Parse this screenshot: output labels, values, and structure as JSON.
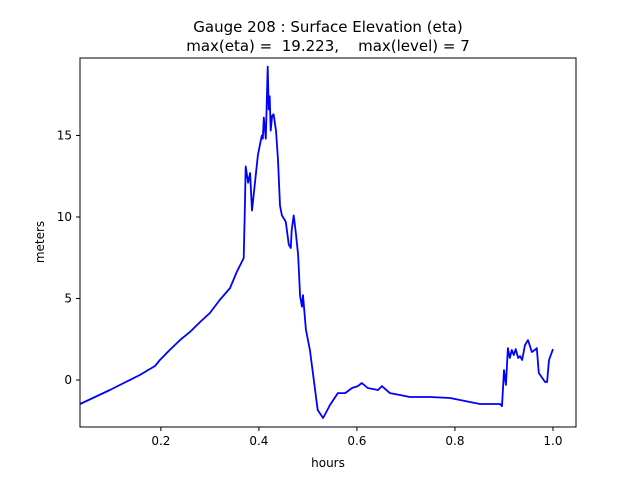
{
  "chart_data": {
    "type": "line",
    "title": "Gauge 208 : Surface Elevation (eta)",
    "subtitle": "max(eta) =  19.223,    max(level) = 7",
    "xlabel": "hours",
    "ylabel": "meters",
    "xlim": [
      0.035,
      1.047
    ],
    "ylim": [
      -2.88,
      19.75
    ],
    "xticks": [
      0.2,
      0.4,
      0.6,
      0.8,
      1.0
    ],
    "xtick_labels": [
      "0.2",
      "0.4",
      "0.6",
      "0.8",
      "1.0"
    ],
    "yticks": [
      0,
      5,
      10,
      15
    ],
    "ytick_labels": [
      "0",
      "5",
      "10",
      "15"
    ],
    "grid": false,
    "series": [
      {
        "name": "eta",
        "color": "#0000ff",
        "x": [
          0.035,
          0.096,
          0.157,
          0.188,
          0.198,
          0.218,
          0.239,
          0.259,
          0.28,
          0.3,
          0.32,
          0.341,
          0.355,
          0.369,
          0.371,
          0.373,
          0.378,
          0.382,
          0.386,
          0.398,
          0.406,
          0.408,
          0.41,
          0.414,
          0.418,
          0.42,
          0.422,
          0.424,
          0.427,
          0.43,
          0.435,
          0.439,
          0.443,
          0.447,
          0.451,
          0.455,
          0.461,
          0.465,
          0.467,
          0.471,
          0.475,
          0.48,
          0.484,
          0.488,
          0.49,
          0.496,
          0.504,
          0.512,
          0.52,
          0.531,
          0.545,
          0.561,
          0.576,
          0.59,
          0.602,
          0.61,
          0.622,
          0.643,
          0.651,
          0.667,
          0.688,
          0.708,
          0.749,
          0.79,
          0.851,
          0.892,
          0.896,
          0.9,
          0.904,
          0.908,
          0.912,
          0.916,
          0.92,
          0.924,
          0.929,
          0.933,
          0.937,
          0.943,
          0.949,
          0.957,
          0.963,
          0.967,
          0.971,
          0.984,
          0.988,
          0.992,
          1.0
        ],
        "y": [
          -1.47,
          -0.61,
          0.31,
          0.86,
          1.23,
          1.84,
          2.45,
          2.94,
          3.56,
          4.11,
          4.91,
          5.64,
          6.63,
          7.48,
          10.1,
          13.1,
          12.1,
          12.7,
          10.4,
          13.8,
          15.0,
          14.8,
          16.1,
          14.8,
          19.223,
          16.6,
          17.4,
          15.3,
          16.2,
          16.3,
          15.3,
          13.5,
          10.7,
          10.1,
          9.9,
          9.7,
          8.3,
          8.1,
          9.2,
          10.1,
          9.1,
          7.7,
          5.15,
          4.5,
          5.2,
          3.1,
          1.84,
          0.0,
          -1.84,
          -2.33,
          -1.53,
          -0.8,
          -0.8,
          -0.49,
          -0.37,
          -0.18,
          -0.49,
          -0.61,
          -0.37,
          -0.8,
          -0.92,
          -1.04,
          -1.04,
          -1.1,
          -1.47,
          -1.47,
          -1.6,
          0.61,
          -0.3,
          1.96,
          1.35,
          1.84,
          1.53,
          1.9,
          1.35,
          1.47,
          1.23,
          2.15,
          2.45,
          1.72,
          1.84,
          1.96,
          0.43,
          -0.12,
          -0.12,
          1.23,
          1.9
        ]
      }
    ]
  }
}
